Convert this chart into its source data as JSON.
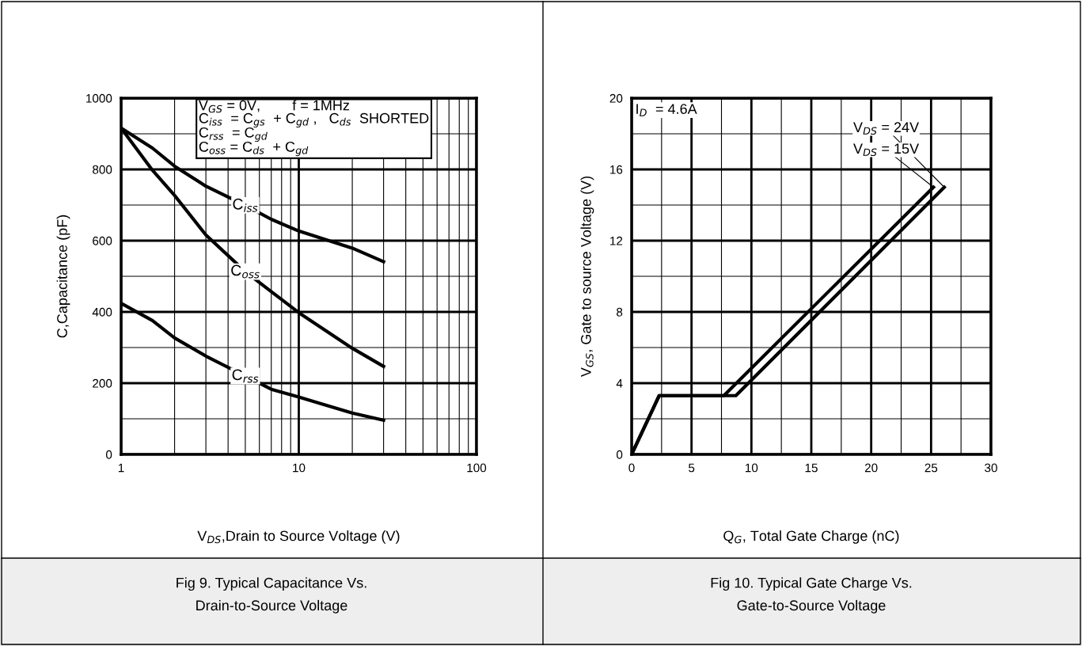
{
  "chart_data": [
    {
      "type": "line",
      "title": "Fig 9. Typical Capacitance Vs.\nDrain-to-Source Voltage",
      "xlabel": "V$_{DS}$,Drain to Source Voltage (V)",
      "ylabel": "C,Capacitance (pF)",
      "log": "x",
      "xlim": [
        1,
        100
      ],
      "xticks": [
        1,
        10,
        100
      ],
      "ylim": [
        0,
        1000
      ],
      "yticks": [
        0,
        200,
        400,
        600,
        800,
        1000
      ],
      "grid": true,
      "marker": "none",
      "line_style": "solid",
      "x": [
        1,
        1.5,
        2,
        3,
        5,
        7,
        10,
        20,
        30
      ],
      "series": [
        {
          "name": "C$_{iss}$",
          "color": "#000000",
          "values": [
            916,
            860,
            809,
            753,
            699,
            660,
            627,
            579,
            541
          ]
        },
        {
          "name": "C$_{oss}$",
          "color": "#000000",
          "values": [
            916,
            798,
            727,
            616,
            513,
            457,
            398,
            298,
            247
          ]
        },
        {
          "name": "C$_{rss}$",
          "color": "#000000",
          "values": [
            424,
            376,
            327,
            276,
            220,
            183,
            161,
            116,
            96
          ]
        }
      ],
      "annotations": [
        "V$_{GS}$ = 0V,        f = 1MHz",
        "C$_{iss}$  = C$_{gs}$  + C$_{gd}$ ,   C$_{ds}$  SHORTED",
        "C$_{rss}$  = C$_{gd}$",
        "C$_{oss}$ = C$_{ds}$  + C$_{gd}$"
      ]
    },
    {
      "type": "line",
      "title": "Fig 10. Typical Gate Charge Vs.\nGate-to-Source Voltage",
      "xlabel": "Q$_{G}$, Total Gate Charge (nC)",
      "ylabel": "V$_{GS}$, Gate to source Voltage (V)",
      "xlim": [
        0,
        30
      ],
      "xticks": [
        0,
        5,
        10,
        15,
        20,
        25,
        30
      ],
      "ylim": [
        0,
        20
      ],
      "yticks": [
        0,
        4,
        8,
        12,
        16,
        20
      ],
      "grid": true,
      "marker": "none",
      "line_style": "solid",
      "series": [
        {
          "name": "V$_{DS}$ = 24V",
          "color": "#000000",
          "x": [
            0,
            2.3,
            8.7,
            26.1
          ],
          "values": [
            0,
            3.3,
            3.3,
            15.0
          ]
        },
        {
          "name": "V$_{DS}$ = 15V",
          "color": "#000000",
          "x": [
            0,
            2.3,
            7.7,
            25.2
          ],
          "values": [
            0,
            3.3,
            3.3,
            15.0
          ]
        }
      ],
      "annotations": [
        "I$_{D}$  = 4.6A"
      ]
    }
  ]
}
